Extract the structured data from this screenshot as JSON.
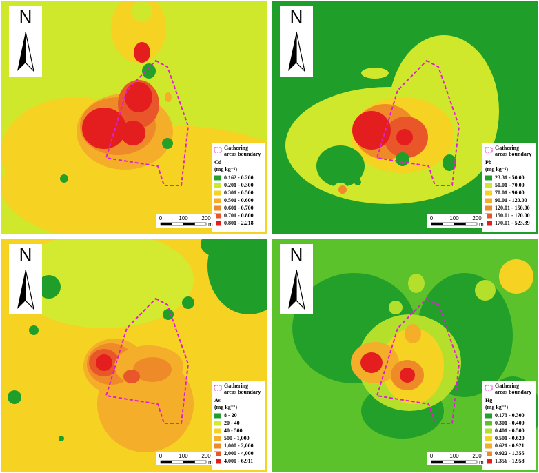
{
  "panels": [
    {
      "north": "N",
      "legend": {
        "boundary": [
          "Gathering",
          "areas boundary"
        ],
        "element": "Cd",
        "unit": "(mg kg⁻¹)",
        "classes": [
          {
            "label": "0.162 - 0.200",
            "color": "#22a02a"
          },
          {
            "label": "0.201 - 0.300",
            "color": "#cfe82c"
          },
          {
            "label": "0.301 - 0.500",
            "color": "#f6d322"
          },
          {
            "label": "0.501 - 0.600",
            "color": "#f4ae2a"
          },
          {
            "label": "0.601 - 0.700",
            "color": "#ef8a28"
          },
          {
            "label": "0.701 - 0.800",
            "color": "#e8562a"
          },
          {
            "label": "0.801 - 2.218",
            "color": "#e41e1e"
          }
        ]
      },
      "scale": {
        "ticks": [
          0,
          100,
          200
        ],
        "unit": "m"
      }
    },
    {
      "north": "N",
      "legend": {
        "boundary": [
          "Gathering",
          "areas boundary"
        ],
        "element": "Pb",
        "unit": "(mg kg⁻¹)",
        "classes": [
          {
            "label": "23.31 - 50.00",
            "color": "#1f9e2a"
          },
          {
            "label": "50.01 - 70.00",
            "color": "#cfe82c"
          },
          {
            "label": "70.01 - 90.00",
            "color": "#f6d322"
          },
          {
            "label": "90.01 - 120.00",
            "color": "#f4ae2a"
          },
          {
            "label": "120.01 - 150.00",
            "color": "#ef8a28"
          },
          {
            "label": "150.01 - 170.00",
            "color": "#e8562a"
          },
          {
            "label": "170.01 - 523.39",
            "color": "#e41e1e"
          }
        ]
      },
      "scale": {
        "ticks": [
          0,
          100,
          200
        ],
        "unit": "m"
      }
    },
    {
      "north": "N",
      "legend": {
        "boundary": [
          "Gathering",
          "areas boundary"
        ],
        "element": "As",
        "unit": "(mg kg⁻¹)",
        "classes": [
          {
            "label": "8 - 20",
            "color": "#1f9e2a"
          },
          {
            "label": "20 - 40",
            "color": "#d3ea30"
          },
          {
            "label": "40 - 500",
            "color": "#f6d322"
          },
          {
            "label": "500 - 1,000",
            "color": "#f4ae2a"
          },
          {
            "label": "1,000 - 2,000",
            "color": "#ef8a28"
          },
          {
            "label": "2,000 - 4,000",
            "color": "#e8562a"
          },
          {
            "label": "4,000 - 6,911",
            "color": "#e41e1e"
          }
        ]
      },
      "scale": {
        "ticks": [
          0,
          100,
          200
        ],
        "unit": "m"
      }
    },
    {
      "north": "N",
      "legend": {
        "boundary": [
          "Gathering",
          "areas boundary"
        ],
        "element": "Hg",
        "unit": "(mg kg⁻¹)",
        "classes": [
          {
            "label": "0.173 - 0.300",
            "color": "#22a02a"
          },
          {
            "label": "0.301 - 0.400",
            "color": "#5cc22c"
          },
          {
            "label": "0.401 - 0.500",
            "color": "#b4e02c"
          },
          {
            "label": "0.501 - 0.620",
            "color": "#f6d322"
          },
          {
            "label": "0.621 - 0.921",
            "color": "#f4ae2a"
          },
          {
            "label": "0.922 - 1.355",
            "color": "#ef8a28"
          },
          {
            "label": "1.356 - 1.958",
            "color": "#e41e1e"
          }
        ]
      },
      "scale": {
        "ticks": [
          0,
          100,
          200
        ],
        "unit": "m"
      }
    }
  ]
}
